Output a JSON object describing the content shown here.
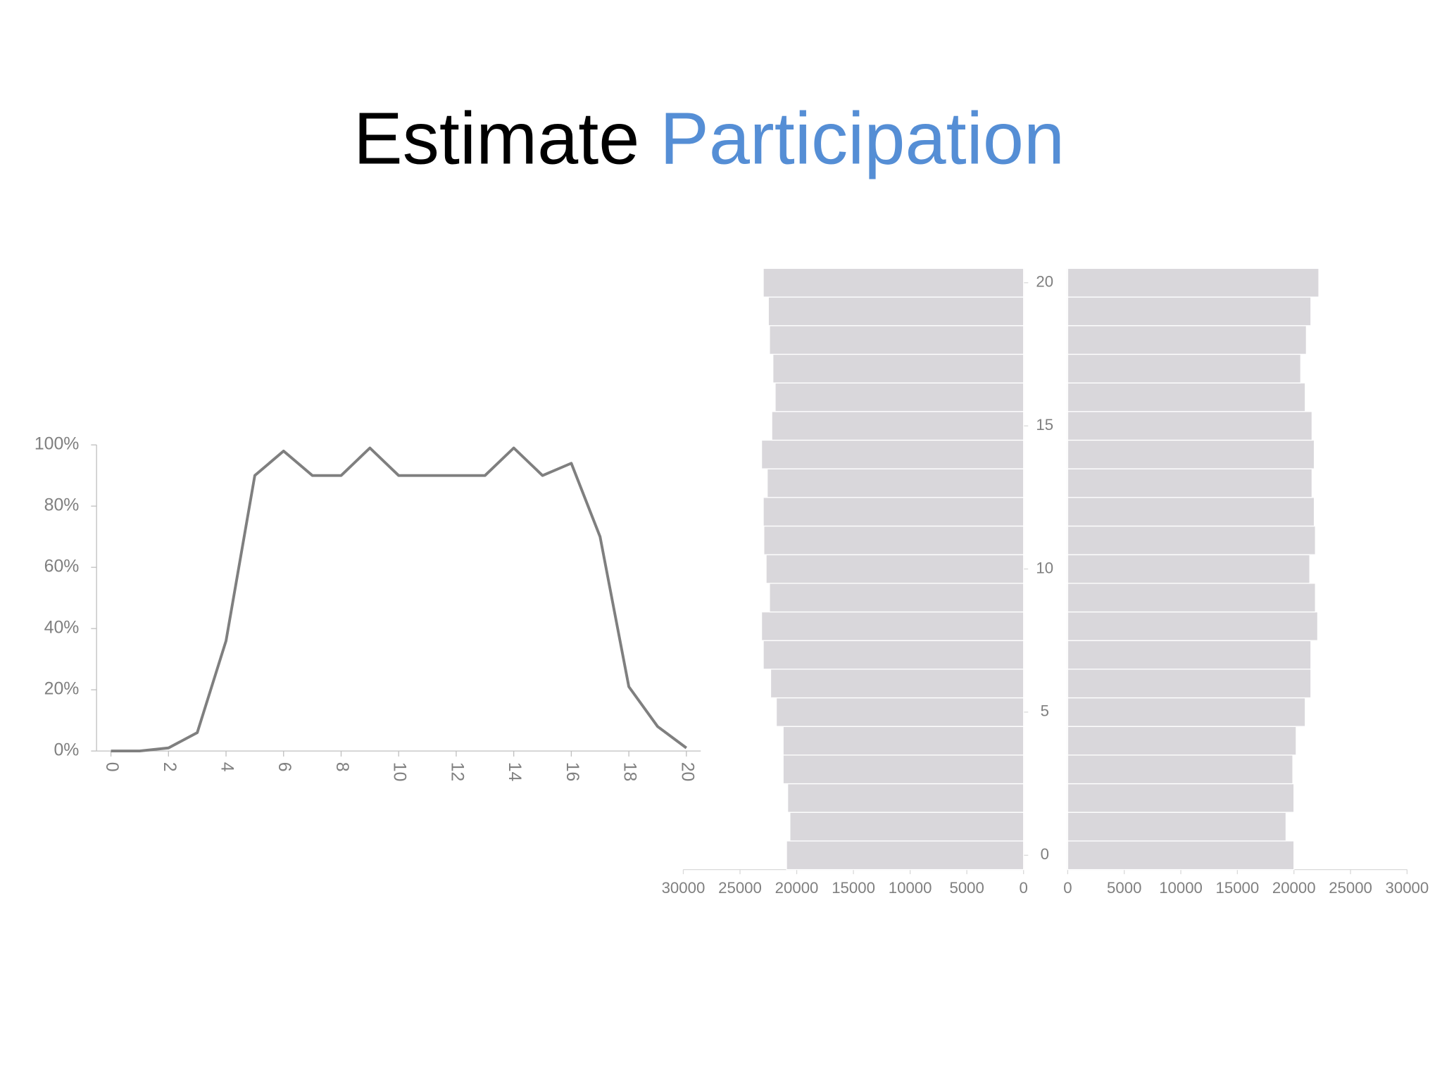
{
  "title": [
    "Estimate",
    "Participation"
  ],
  "chart_data": [
    {
      "type": "line",
      "color": "#7f7f7f",
      "x": [
        0,
        1,
        2,
        3,
        4,
        5,
        6,
        7,
        8,
        9,
        10,
        11,
        12,
        13,
        14,
        15,
        16,
        17,
        18,
        19,
        20
      ],
      "values": [
        0,
        0,
        1,
        6,
        36,
        90,
        98,
        90,
        90,
        99,
        90,
        90,
        90,
        90,
        99,
        90,
        94,
        70,
        21,
        8,
        1
      ],
      "xlim": [
        -0.5,
        20.5
      ],
      "xticks": [
        0,
        2,
        4,
        6,
        8,
        10,
        12,
        14,
        16,
        18,
        20
      ],
      "ylim": [
        0,
        100
      ],
      "yticks": [
        {
          "value": 0,
          "label": "0%"
        },
        {
          "value": 20,
          "label": "20%"
        },
        {
          "value": 40,
          "label": "40%"
        },
        {
          "value": 60,
          "label": "60%"
        },
        {
          "value": 80,
          "label": "80%"
        },
        {
          "value": 100,
          "label": "100%"
        }
      ]
    },
    {
      "type": "hbar",
      "color": "#d9d7db",
      "y": [
        0,
        1,
        2,
        3,
        4,
        5,
        6,
        7,
        8,
        9,
        10,
        11,
        12,
        13,
        14,
        15,
        16,
        17,
        18,
        19,
        20
      ],
      "values": [
        20900,
        20600,
        20800,
        21200,
        21200,
        21800,
        22300,
        22950,
        23100,
        22400,
        22700,
        22900,
        22950,
        22600,
        23100,
        22200,
        21900,
        22100,
        22400,
        22500,
        22950
      ],
      "xlim": [
        30000,
        0
      ],
      "xticks": [
        30000,
        25000,
        20000,
        15000,
        10000,
        5000,
        0
      ],
      "ylim": [
        -0.5,
        20.5
      ],
      "yticks": [
        0,
        5,
        10,
        15,
        20
      ]
    },
    {
      "type": "hbar",
      "color": "#d9d7db",
      "y": [
        0,
        1,
        2,
        3,
        4,
        5,
        6,
        7,
        8,
        9,
        10,
        11,
        12,
        13,
        14,
        15,
        16,
        17,
        18,
        19,
        20
      ],
      "values": [
        20000,
        19300,
        20000,
        19900,
        20200,
        21000,
        21500,
        21500,
        22100,
        21900,
        21400,
        21900,
        21800,
        21600,
        21800,
        21600,
        21000,
        20600,
        21100,
        21500,
        22200
      ],
      "xlim": [
        0,
        30000
      ],
      "xticks": [
        0,
        5000,
        10000,
        15000,
        20000,
        25000,
        30000
      ],
      "ylim": [
        -0.5,
        20.5
      ]
    }
  ]
}
